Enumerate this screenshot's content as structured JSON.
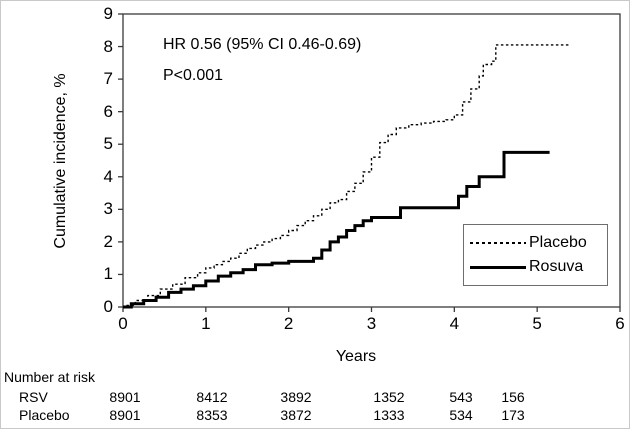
{
  "chart_data": {
    "type": "line",
    "subtype": "kaplan-meier-step",
    "title": "",
    "xlabel": "Years",
    "ylabel": "Cumulative incidence, %",
    "xlim": [
      0,
      6
    ],
    "ylim": [
      0,
      9
    ],
    "x_ticks": [
      0,
      1,
      2,
      3,
      4,
      5,
      6
    ],
    "y_ticks": [
      0,
      1,
      2,
      3,
      4,
      5,
      6,
      7,
      8,
      9
    ],
    "grid": "off",
    "annotations": [
      "HR 0.56 (95% CI 0.46-0.69)",
      "P<0.001"
    ],
    "legend": {
      "position": "lower right",
      "entries": [
        {
          "label": "Placebo",
          "style": "dashed"
        },
        {
          "label": "Rosuva",
          "style": "solid"
        }
      ]
    },
    "series": [
      {
        "name": "Placebo",
        "style": "dashed",
        "points": [
          [
            0,
            0
          ],
          [
            0.05,
            0.05
          ],
          [
            0.15,
            0.2
          ],
          [
            0.3,
            0.35
          ],
          [
            0.45,
            0.55
          ],
          [
            0.6,
            0.7
          ],
          [
            0.75,
            0.9
          ],
          [
            0.9,
            1.05
          ],
          [
            1.0,
            1.2
          ],
          [
            1.1,
            1.3
          ],
          [
            1.2,
            1.4
          ],
          [
            1.3,
            1.5
          ],
          [
            1.4,
            1.65
          ],
          [
            1.5,
            1.8
          ],
          [
            1.6,
            1.9
          ],
          [
            1.7,
            2.0
          ],
          [
            1.8,
            2.1
          ],
          [
            1.9,
            2.2
          ],
          [
            2.0,
            2.35
          ],
          [
            2.1,
            2.5
          ],
          [
            2.2,
            2.65
          ],
          [
            2.3,
            2.8
          ],
          [
            2.4,
            3.0
          ],
          [
            2.5,
            3.2
          ],
          [
            2.6,
            3.3
          ],
          [
            2.7,
            3.55
          ],
          [
            2.8,
            3.8
          ],
          [
            2.9,
            4.15
          ],
          [
            3.0,
            4.6
          ],
          [
            3.1,
            5.05
          ],
          [
            3.2,
            5.3
          ],
          [
            3.3,
            5.5
          ],
          [
            3.45,
            5.6
          ],
          [
            3.6,
            5.65
          ],
          [
            3.75,
            5.7
          ],
          [
            3.9,
            5.75
          ],
          [
            4.0,
            5.9
          ],
          [
            4.1,
            6.3
          ],
          [
            4.2,
            6.7
          ],
          [
            4.3,
            7.1
          ],
          [
            4.35,
            7.45
          ],
          [
            4.45,
            7.55
          ],
          [
            4.5,
            8.05
          ],
          [
            5.4,
            8.05
          ]
        ]
      },
      {
        "name": "Rosuva",
        "style": "solid",
        "points": [
          [
            0,
            0
          ],
          [
            0.1,
            0.1
          ],
          [
            0.25,
            0.2
          ],
          [
            0.4,
            0.3
          ],
          [
            0.55,
            0.45
          ],
          [
            0.7,
            0.55
          ],
          [
            0.85,
            0.65
          ],
          [
            1.0,
            0.8
          ],
          [
            1.15,
            0.95
          ],
          [
            1.3,
            1.05
          ],
          [
            1.45,
            1.15
          ],
          [
            1.6,
            1.3
          ],
          [
            1.8,
            1.35
          ],
          [
            2.0,
            1.4
          ],
          [
            2.3,
            1.5
          ],
          [
            2.4,
            1.75
          ],
          [
            2.5,
            2.0
          ],
          [
            2.6,
            2.15
          ],
          [
            2.7,
            2.35
          ],
          [
            2.8,
            2.5
          ],
          [
            2.9,
            2.65
          ],
          [
            3.0,
            2.75
          ],
          [
            3.35,
            3.05
          ],
          [
            3.95,
            3.05
          ],
          [
            4.05,
            3.4
          ],
          [
            4.15,
            3.7
          ],
          [
            4.3,
            4.0
          ],
          [
            4.6,
            4.75
          ],
          [
            5.15,
            4.75
          ]
        ]
      }
    ]
  },
  "risk_table": {
    "title": "Number at risk",
    "years": [
      0,
      1,
      2,
      3,
      4,
      5
    ],
    "rows": [
      {
        "label": "RSV",
        "values": [
          "8901",
          "8412",
          "3892",
          "1352",
          "543",
          "156"
        ]
      },
      {
        "label": "Placebo",
        "values": [
          "8901",
          "8353",
          "3872",
          "1333",
          "534",
          "173"
        ]
      }
    ]
  },
  "colors": {
    "line": "#000000",
    "frame": "#3a3a3a",
    "text": "#000000",
    "background": "#ffffff"
  }
}
